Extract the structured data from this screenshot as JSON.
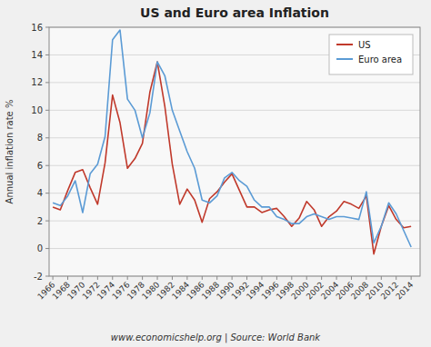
{
  "chart_data": {
    "type": "line",
    "title": "US and Euro area Inflation",
    "y_label": "Annual inflation rate %",
    "annotations": [
      "www.economicshelp.org | Source: World Bank"
    ],
    "x": [
      1966,
      1967,
      1968,
      1969,
      1970,
      1971,
      1972,
      1973,
      1974,
      1975,
      1976,
      1977,
      1978,
      1979,
      1980,
      1981,
      1982,
      1983,
      1984,
      1985,
      1986,
      1987,
      1988,
      1989,
      1990,
      1991,
      1992,
      1993,
      1994,
      1995,
      1996,
      1997,
      1998,
      1999,
      2000,
      2001,
      2002,
      2003,
      2004,
      2005,
      2006,
      2007,
      2008,
      2009,
      2010,
      2011,
      2012,
      2013,
      2014
    ],
    "series": [
      {
        "name": "US",
        "color": "#c0392b",
        "values": [
          3.0,
          2.8,
          4.2,
          5.5,
          5.7,
          4.4,
          3.2,
          6.2,
          11.1,
          9.1,
          5.8,
          6.5,
          7.6,
          11.3,
          13.5,
          10.3,
          6.1,
          3.2,
          4.3,
          3.5,
          1.9,
          3.6,
          4.1,
          4.8,
          5.4,
          4.2,
          3.0,
          3.0,
          2.6,
          2.8,
          2.9,
          2.3,
          1.6,
          2.2,
          3.4,
          2.8,
          1.6,
          2.3,
          2.7,
          3.4,
          3.2,
          2.9,
          3.8,
          -0.4,
          1.6,
          3.1,
          2.1,
          1.5,
          1.6
        ]
      },
      {
        "name": "Euro area",
        "color": "#5b9bd5",
        "values": [
          3.3,
          3.1,
          3.8,
          4.9,
          2.6,
          5.4,
          6.1,
          8.1,
          15.1,
          15.8,
          10.8,
          10.0,
          8.0,
          9.8,
          13.5,
          12.5,
          10.0,
          8.5,
          7.0,
          5.8,
          3.5,
          3.3,
          3.8,
          5.1,
          5.5,
          4.9,
          4.5,
          3.5,
          3.0,
          3.0,
          2.3,
          2.1,
          1.8,
          1.8,
          2.3,
          2.5,
          2.3,
          2.1,
          2.3,
          2.3,
          2.2,
          2.1,
          4.1,
          0.4,
          1.6,
          3.3,
          2.5,
          1.3,
          0.1
        ]
      }
    ],
    "xlim": [
      1965.5,
      2015.2
    ],
    "xticks": [
      1966,
      1968,
      1970,
      1972,
      1974,
      1976,
      1978,
      1980,
      1982,
      1984,
      1986,
      1988,
      1990,
      1992,
      1994,
      1996,
      1998,
      2000,
      2002,
      2004,
      2006,
      2008,
      2010,
      2012,
      2014
    ],
    "ylim": [
      -2,
      16
    ],
    "yticks": [
      -2,
      0,
      2,
      4,
      6,
      8,
      10,
      12,
      14,
      16
    ],
    "grid": "y",
    "legend": "upper right"
  }
}
